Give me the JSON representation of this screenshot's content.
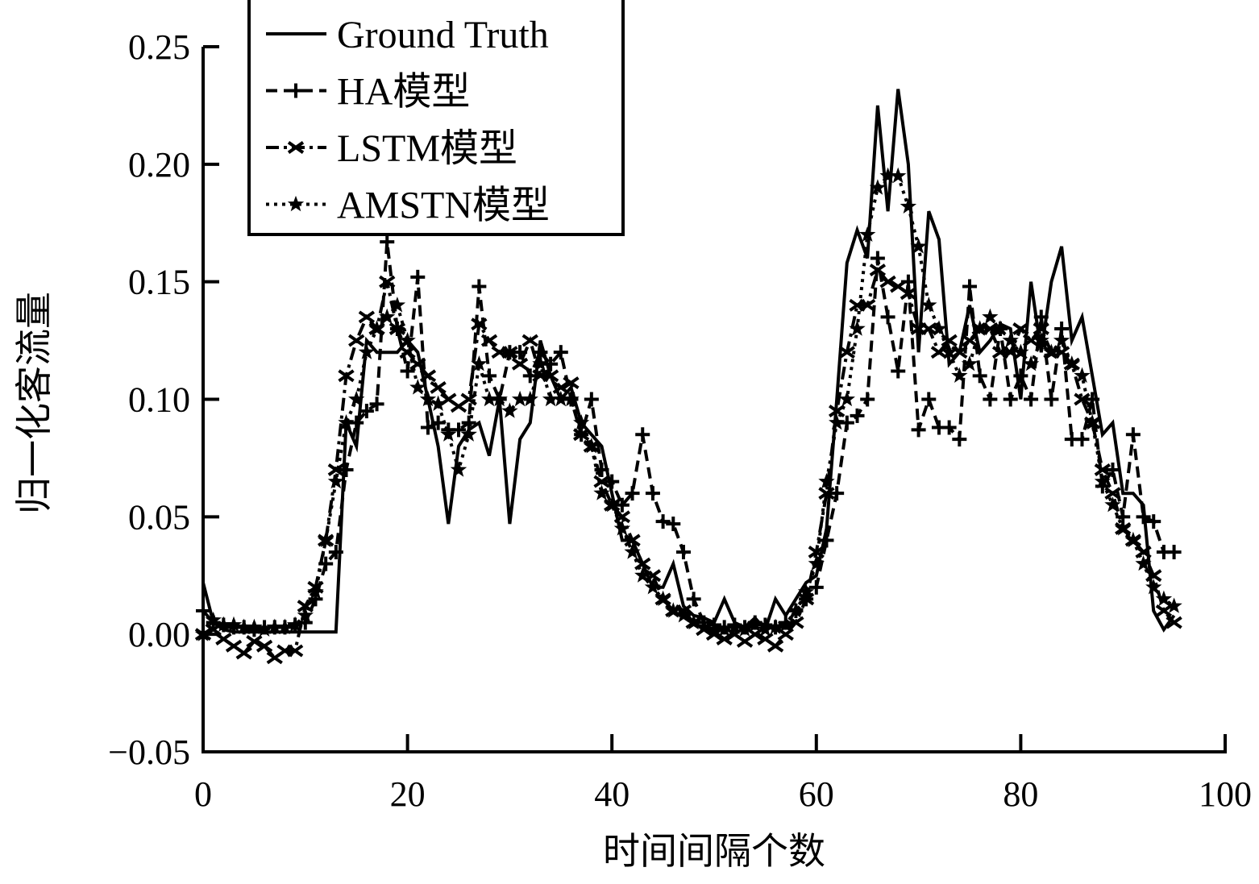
{
  "chart_data": {
    "type": "line",
    "title": "",
    "xlabel": "时间间隔个数",
    "ylabel": "归一化客流量",
    "xlim": [
      0,
      100
    ],
    "ylim": [
      -0.05,
      0.25
    ],
    "xticks": [
      "0",
      "20",
      "40",
      "60",
      "80",
      "100"
    ],
    "xtick_values": [
      0,
      20,
      40,
      60,
      80,
      100
    ],
    "yticks": [
      "−0.05",
      "0.00",
      "0.05",
      "0.10",
      "0.15",
      "0.20",
      "0.25"
    ],
    "ytick_values": [
      -0.05,
      0,
      0.05,
      0.1,
      0.15,
      0.2,
      0.25
    ],
    "grid": false,
    "legend_position": "top-left",
    "x": [
      0,
      1,
      2,
      3,
      4,
      5,
      6,
      7,
      8,
      9,
      10,
      11,
      12,
      13,
      14,
      15,
      16,
      17,
      18,
      19,
      20,
      21,
      22,
      23,
      24,
      25,
      26,
      27,
      28,
      29,
      30,
      31,
      32,
      33,
      34,
      35,
      36,
      37,
      38,
      39,
      40,
      41,
      42,
      43,
      44,
      45,
      46,
      47,
      48,
      49,
      50,
      51,
      52,
      53,
      54,
      55,
      56,
      57,
      58,
      59,
      60,
      61,
      62,
      63,
      64,
      65,
      66,
      67,
      68,
      69,
      70,
      71,
      72,
      73,
      74,
      75,
      76,
      77,
      78,
      79,
      80,
      81,
      82,
      83,
      84,
      85,
      86,
      87,
      88,
      89,
      90,
      91,
      92,
      93,
      94,
      95
    ],
    "series": [
      {
        "name": "Ground Truth",
        "style": "solid",
        "marker": "none",
        "values": [
          0.022,
          0.005,
          0.002,
          0.001,
          0.001,
          0.001,
          0.001,
          0.001,
          0.001,
          0.001,
          0.001,
          0.001,
          0.001,
          0.001,
          0.09,
          0.08,
          0.125,
          0.12,
          0.12,
          0.12,
          0.125,
          0.12,
          0.1,
          0.08,
          0.047,
          0.08,
          0.087,
          0.09,
          0.076,
          0.1,
          0.047,
          0.083,
          0.09,
          0.125,
          0.11,
          0.1,
          0.105,
          0.09,
          0.085,
          0.08,
          0.06,
          0.04,
          0.04,
          0.03,
          0.02,
          0.02,
          0.03,
          0.012,
          0.008,
          0.007,
          0.005,
          0.015,
          0.005,
          0.003,
          0.007,
          0.002,
          0.015,
          0.008,
          0.015,
          0.022,
          0.025,
          0.045,
          0.1,
          0.158,
          0.172,
          0.16,
          0.225,
          0.18,
          0.232,
          0.2,
          0.12,
          0.18,
          0.168,
          0.115,
          0.12,
          0.14,
          0.12,
          0.125,
          0.132,
          0.13,
          0.1,
          0.15,
          0.12,
          0.15,
          0.165,
          0.125,
          0.135,
          0.11,
          0.085,
          0.09,
          0.06,
          0.06,
          0.055,
          0.01,
          0.002,
          0.008
        ]
      },
      {
        "name": "HA模型",
        "style": "dashed",
        "marker": "plus",
        "values": [
          0.01,
          0.005,
          0.004,
          0.003,
          0.003,
          0.002,
          0.003,
          0.003,
          0.003,
          0.004,
          0.005,
          0.015,
          0.03,
          0.035,
          0.07,
          0.09,
          0.095,
          0.098,
          0.167,
          0.13,
          0.112,
          0.152,
          0.088,
          0.09,
          0.087,
          0.087,
          0.09,
          0.148,
          0.11,
          0.1,
          0.12,
          0.12,
          0.11,
          0.12,
          0.115,
          0.12,
          0.1,
          0.085,
          0.1,
          0.07,
          0.065,
          0.055,
          0.06,
          0.085,
          0.06,
          0.048,
          0.047,
          0.035,
          0.015,
          0.005,
          0.004,
          0.003,
          0.004,
          0.003,
          0.005,
          0.004,
          0.003,
          0.005,
          0.01,
          0.015,
          0.02,
          0.04,
          0.06,
          0.09,
          0.093,
          0.1,
          0.16,
          0.135,
          0.112,
          0.15,
          0.087,
          0.1,
          0.088,
          0.088,
          0.083,
          0.148,
          0.11,
          0.1,
          0.13,
          0.1,
          0.11,
          0.1,
          0.135,
          0.1,
          0.13,
          0.083,
          0.083,
          0.1,
          0.063,
          0.07,
          0.05,
          0.085,
          0.05,
          0.048,
          0.035,
          0.035
        ]
      },
      {
        "name": "LSTM模型",
        "style": "dashdot",
        "marker": "x",
        "values": [
          0,
          0.002,
          -0.002,
          -0.005,
          -0.008,
          -0.003,
          -0.005,
          -0.01,
          -0.007,
          -0.007,
          0.012,
          0.02,
          0.04,
          0.07,
          0.11,
          0.125,
          0.135,
          0.13,
          0.15,
          0.13,
          0.12,
          0.115,
          0.11,
          0.105,
          0.1,
          0.097,
          0.1,
          0.132,
          0.125,
          0.12,
          0.12,
          0.115,
          0.125,
          0.11,
          0.11,
          0.105,
          0.107,
          0.085,
          0.08,
          0.065,
          0.055,
          0.05,
          0.04,
          0.03,
          0.025,
          0.015,
          0.01,
          0.01,
          0.005,
          0.002,
          0,
          -0.002,
          0,
          -0.003,
          0,
          -0.002,
          -0.005,
          0,
          0.005,
          0.015,
          0.035,
          0.06,
          0.095,
          0.12,
          0.14,
          0.14,
          0.155,
          0.15,
          0.148,
          0.145,
          0.13,
          0.13,
          0.12,
          0.125,
          0.12,
          0.125,
          0.13,
          0.13,
          0.12,
          0.12,
          0.13,
          0.125,
          0.13,
          0.12,
          0.12,
          0.115,
          0.1,
          0.09,
          0.07,
          0.06,
          0.045,
          0.04,
          0.035,
          0.025,
          0.01,
          0.005
        ]
      },
      {
        "name": "AMSTN模型",
        "style": "dotted",
        "marker": "star",
        "values": [
          0,
          0.006,
          0.004,
          0.004,
          0.003,
          0.003,
          0.002,
          0.003,
          0.003,
          0.004,
          0.008,
          0.018,
          0.04,
          0.065,
          0.09,
          0.1,
          0.12,
          0.13,
          0.135,
          0.14,
          0.125,
          0.105,
          0.1,
          0.098,
          0.085,
          0.07,
          0.085,
          0.115,
          0.1,
          0.1,
          0.095,
          0.1,
          0.1,
          0.115,
          0.1,
          0.1,
          0.1,
          0.09,
          0.08,
          0.06,
          0.055,
          0.045,
          0.035,
          0.025,
          0.02,
          0.015,
          0.01,
          0.008,
          0.005,
          0.003,
          0.002,
          0.002,
          0.003,
          0.002,
          0.004,
          0.002,
          0.003,
          0.004,
          0.01,
          0.018,
          0.03,
          0.065,
          0.09,
          0.1,
          0.13,
          0.17,
          0.19,
          0.195,
          0.195,
          0.182,
          0.165,
          0.14,
          0.13,
          0.12,
          0.11,
          0.115,
          0.13,
          0.135,
          0.13,
          0.125,
          0.12,
          0.115,
          0.125,
          0.12,
          0.125,
          0.115,
          0.11,
          0.09,
          0.065,
          0.055,
          0.045,
          0.04,
          0.03,
          0.02,
          0.015,
          0.012
        ]
      }
    ]
  }
}
